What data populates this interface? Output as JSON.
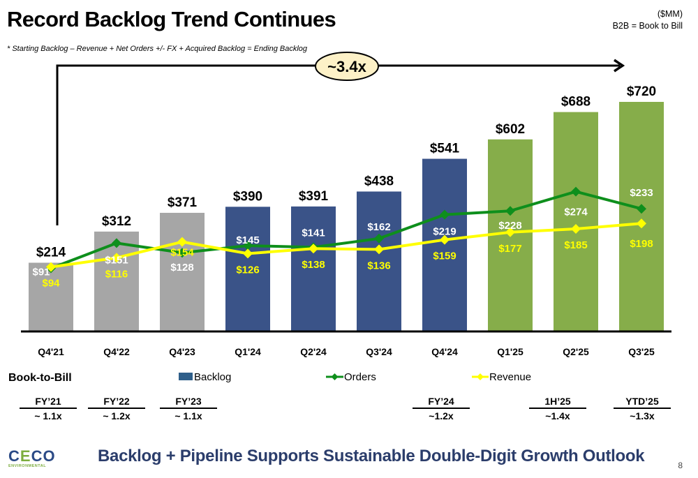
{
  "header": {
    "title": "Record Backlog Trend Continues",
    "footnote": "* Starting Backlog – Revenue + Net Orders +/- FX + Acquired Backlog = Ending Backlog",
    "units": "($MM)",
    "abbrev": "B2B = Book to Bill"
  },
  "growth_callout": "~3.4x",
  "chart_data": {
    "type": "bar",
    "title": "Record Backlog Trend Continues",
    "xlabel": "",
    "ylabel": "$MM",
    "units": "$MM",
    "categories": [
      "Q4'21",
      "Q4'22",
      "Q4'23",
      "Q1'24",
      "Q2'24",
      "Q3'24",
      "Q4'24",
      "Q1'25",
      "Q2'25",
      "Q3'25"
    ],
    "ylim": [
      0,
      780
    ],
    "grid": false,
    "legend_position": "bottom",
    "series": [
      {
        "name": "Backlog",
        "type": "bar",
        "values": [
          214,
          312,
          371,
          390,
          391,
          438,
          541,
          602,
          688,
          720
        ],
        "labels": [
          "$214",
          "$312",
          "$371",
          "$390",
          "$391",
          "$438",
          "$541",
          "$602",
          "$688",
          "$720"
        ],
        "bar_colors": [
          "#a6a6a6",
          "#a6a6a6",
          "#a6a6a6",
          "#3a5388",
          "#3a5388",
          "#3a5388",
          "#3a5388",
          "#86ad4a",
          "#86ad4a",
          "#86ad4a"
        ],
        "legend_color": "#2f5f8a"
      },
      {
        "name": "Orders",
        "type": "line",
        "color": "#0e8f1c",
        "values": [
          91,
          151,
          128,
          145,
          141,
          162,
          219,
          228,
          274,
          233
        ],
        "labels": [
          "$91",
          "$151",
          "$128",
          "$145",
          "$141",
          "$162",
          "$219",
          "$228",
          "$274",
          "$233"
        ]
      },
      {
        "name": "Revenue",
        "type": "line",
        "color": "#ffff00",
        "values": [
          94,
          116,
          154,
          126,
          138,
          136,
          159,
          177,
          185,
          198
        ],
        "labels": [
          "$94",
          "$116",
          "$154",
          "$126",
          "$138",
          "$136",
          "$159",
          "$177",
          "$185",
          "$198"
        ]
      }
    ],
    "annotations": [
      "~3.4x"
    ]
  },
  "book_to_bill": {
    "heading": "Book-to-Bill",
    "items": [
      {
        "period": "FY’21",
        "value": "~ 1.1x"
      },
      {
        "period": "FY’22",
        "value": "~ 1.2x"
      },
      {
        "period": "FY’23",
        "value": "~ 1.1x"
      },
      {
        "period": "FY’24",
        "value": "~1.2x"
      },
      {
        "period": "1H’25",
        "value": "~1.4x"
      },
      {
        "period": "YTD’25",
        "value": "~1.3x"
      }
    ]
  },
  "footer": {
    "logo_word_1": "C",
    "logo_word_2": "E",
    "logo_word_3": "CO",
    "logo_sub": "ENVIRONMENTAL",
    "message": "Backlog + Pipeline Supports Sustainable Double-Digit Growth Outlook",
    "page_number": "8"
  }
}
